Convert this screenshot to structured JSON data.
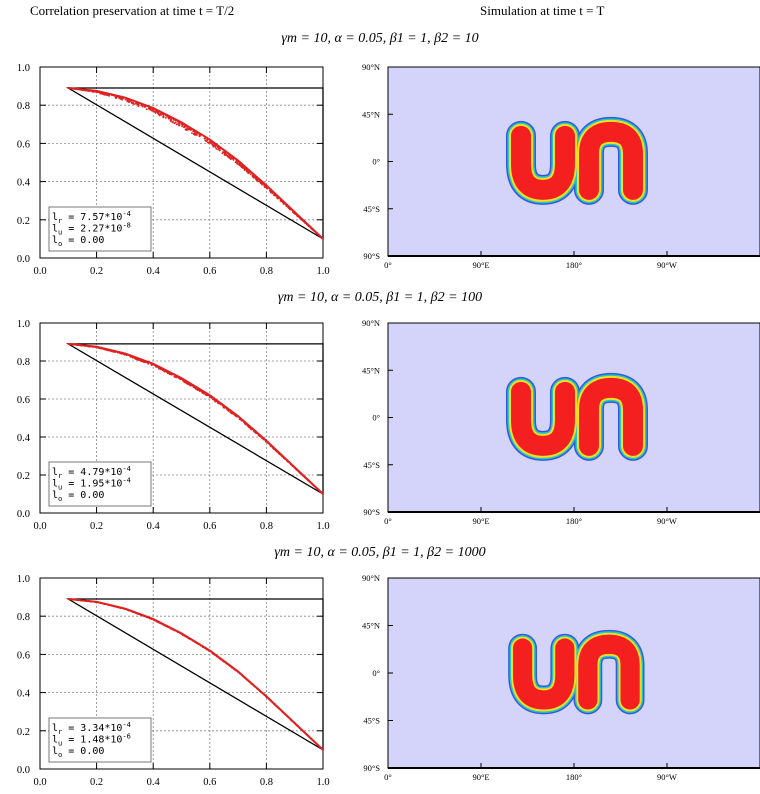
{
  "header": {
    "left_title": "Correlation preservation at time t = T/2",
    "right_title": "Simulation at time t = T"
  },
  "map_axes": {
    "y_labels": [
      "90°N",
      "45°N",
      "0°",
      "45°S",
      "90°S"
    ],
    "x_labels": [
      "0°",
      "90°E",
      "180°",
      "90°W"
    ]
  },
  "colors": {
    "ocean": "#d4d4fb",
    "curve": "#e02020",
    "blob_outer": "#3a57d8",
    "blob_mid": "#20c8c8",
    "blob_inner": "#f0e020",
    "blob_core": "#f42020"
  },
  "rows": [
    {
      "title": "γm = 10, α = 0.05, β1 = 1, β2 = 10",
      "legend": {
        "lr": "7.57*10",
        "lr_exp": "-4",
        "lu": "2.27*10",
        "lu_exp": "-8",
        "lo": "0.00"
      },
      "scatter_spread": 0.025,
      "blob_scale": 1.0
    },
    {
      "title": "γm = 10, α = 0.05, β1 = 1, β2 = 100",
      "legend": {
        "lr": "4.79*10",
        "lr_exp": "-4",
        "lu": "1.95*10",
        "lu_exp": "-4",
        "lo": "0.00"
      },
      "scatter_spread": 0.012,
      "blob_scale": 1.0
    },
    {
      "title": "γm = 10, α = 0.05, β1 = 1, β2 = 1000",
      "legend": {
        "lr": "3.34*10",
        "lr_exp": "-4",
        "lu": "1.48*10",
        "lu_exp": "-6",
        "lo": "0.00"
      },
      "scatter_spread": 0.004,
      "blob_scale": 0.96
    }
  ],
  "chart_data": [
    {
      "type": "scatter",
      "xlim": [
        0,
        1
      ],
      "ylim": [
        0,
        1
      ],
      "x_ticks": [
        "0.0",
        "0.2",
        "0.4",
        "0.6",
        "0.8",
        "1.0"
      ],
      "y_ticks": [
        "0.0",
        "0.2",
        "0.4",
        "0.6",
        "0.8",
        "1.0"
      ],
      "grid": true,
      "triangle": [
        [
          0.1,
          0.89
        ],
        [
          1.0,
          0.89
        ],
        [
          1.0,
          0.1
        ]
      ],
      "curve": {
        "x": [
          0.1,
          0.2,
          0.3,
          0.4,
          0.5,
          0.6,
          0.7,
          0.8,
          0.9,
          1.0
        ],
        "y": [
          0.89,
          0.875,
          0.84,
          0.785,
          0.71,
          0.62,
          0.51,
          0.38,
          0.24,
          0.1
        ]
      }
    },
    {
      "type": "scatter",
      "xlim": [
        0,
        1
      ],
      "ylim": [
        0,
        1
      ],
      "x_ticks": [
        "0.0",
        "0.2",
        "0.4",
        "0.6",
        "0.8",
        "1.0"
      ],
      "y_ticks": [
        "0.0",
        "0.2",
        "0.4",
        "0.6",
        "0.8",
        "1.0"
      ],
      "grid": true,
      "triangle": [
        [
          0.1,
          0.89
        ],
        [
          1.0,
          0.89
        ],
        [
          1.0,
          0.1
        ]
      ],
      "curve": {
        "x": [
          0.1,
          0.2,
          0.3,
          0.4,
          0.5,
          0.6,
          0.7,
          0.8,
          0.9,
          1.0
        ],
        "y": [
          0.89,
          0.875,
          0.84,
          0.785,
          0.71,
          0.62,
          0.51,
          0.38,
          0.24,
          0.1
        ]
      }
    },
    {
      "type": "scatter",
      "xlim": [
        0,
        1
      ],
      "ylim": [
        0,
        1
      ],
      "x_ticks": [
        "0.0",
        "0.2",
        "0.4",
        "0.6",
        "0.8",
        "1.0"
      ],
      "y_ticks": [
        "0.0",
        "0.2",
        "0.4",
        "0.6",
        "0.8",
        "1.0"
      ],
      "grid": true,
      "triangle": [
        [
          0.1,
          0.89
        ],
        [
          1.0,
          0.89
        ],
        [
          1.0,
          0.1
        ]
      ],
      "curve": {
        "x": [
          0.1,
          0.2,
          0.3,
          0.4,
          0.5,
          0.6,
          0.7,
          0.8,
          0.9,
          1.0
        ],
        "y": [
          0.89,
          0.875,
          0.84,
          0.785,
          0.71,
          0.62,
          0.51,
          0.38,
          0.24,
          0.1
        ]
      }
    }
  ]
}
